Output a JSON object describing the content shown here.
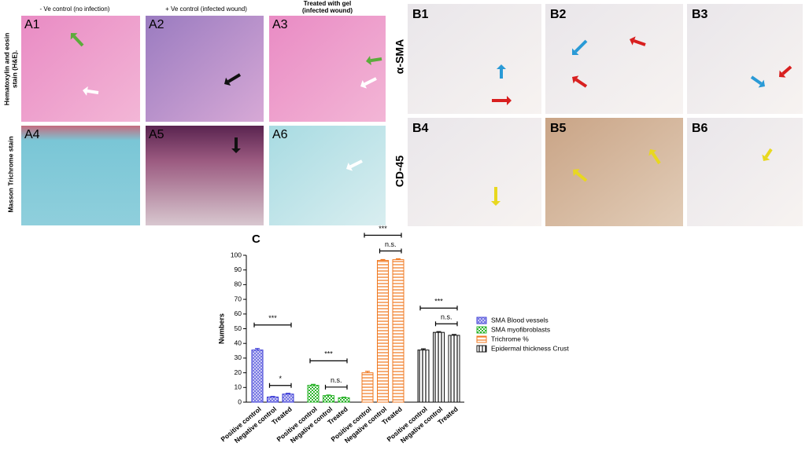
{
  "figure": {
    "column_headers": [
      "- Ve control (no infection)",
      "+ Ve control (infected wound)",
      "Treated with gel",
      "(infected wound)"
    ],
    "row_labels_a": [
      "Hematoxylin and eosin",
      "stain (H&E).",
      "Masson Trichrome stain"
    ],
    "panels_a": [
      "A1",
      "A2",
      "A3",
      "A4",
      "A5",
      "A6"
    ],
    "row_labels_b": [
      "α-SMA",
      "CD-45"
    ],
    "panels_b": [
      "B1",
      "B2",
      "B3",
      "B4",
      "B5",
      "B6"
    ]
  },
  "chart_data": {
    "type": "bar",
    "panel_label": "C",
    "y_label": "Numbers",
    "categories": [
      "Positive control",
      "Negative control",
      "Treated"
    ],
    "series": [
      {
        "name": "SMA Blood vessels",
        "color": "#3b3bd6",
        "hatch": "cross",
        "values": [
          35.5,
          3.5,
          5.5
        ],
        "errors": [
          1,
          0.4,
          0.5
        ],
        "significance": [
          "***",
          "*"
        ]
      },
      {
        "name": "SMA myofibroblasts",
        "color": "#2fb52f",
        "hatch": "check",
        "values": [
          11.5,
          4.5,
          3
        ],
        "errors": [
          0.6,
          0.4,
          0.4
        ],
        "significance": [
          "***",
          "n.s."
        ]
      },
      {
        "name": "Trichrome %",
        "color": "#f07820",
        "hatch": "horizontal",
        "values": [
          20,
          96.5,
          97
        ],
        "errors": [
          1,
          0.6,
          0.6
        ],
        "significance": [
          "***",
          "n.s."
        ]
      },
      {
        "name": "Epidermal thickness Crust",
        "color": "#111111",
        "hatch": "vertical",
        "values": [
          35.5,
          47.5,
          45.5
        ],
        "errors": [
          0.8,
          0.5,
          0.6
        ],
        "significance": [
          "***",
          "n.s."
        ]
      }
    ],
    "ylim": [
      0,
      100
    ],
    "yticks": [
      0,
      10,
      20,
      30,
      40,
      50,
      60,
      70,
      80,
      90,
      100
    ]
  }
}
